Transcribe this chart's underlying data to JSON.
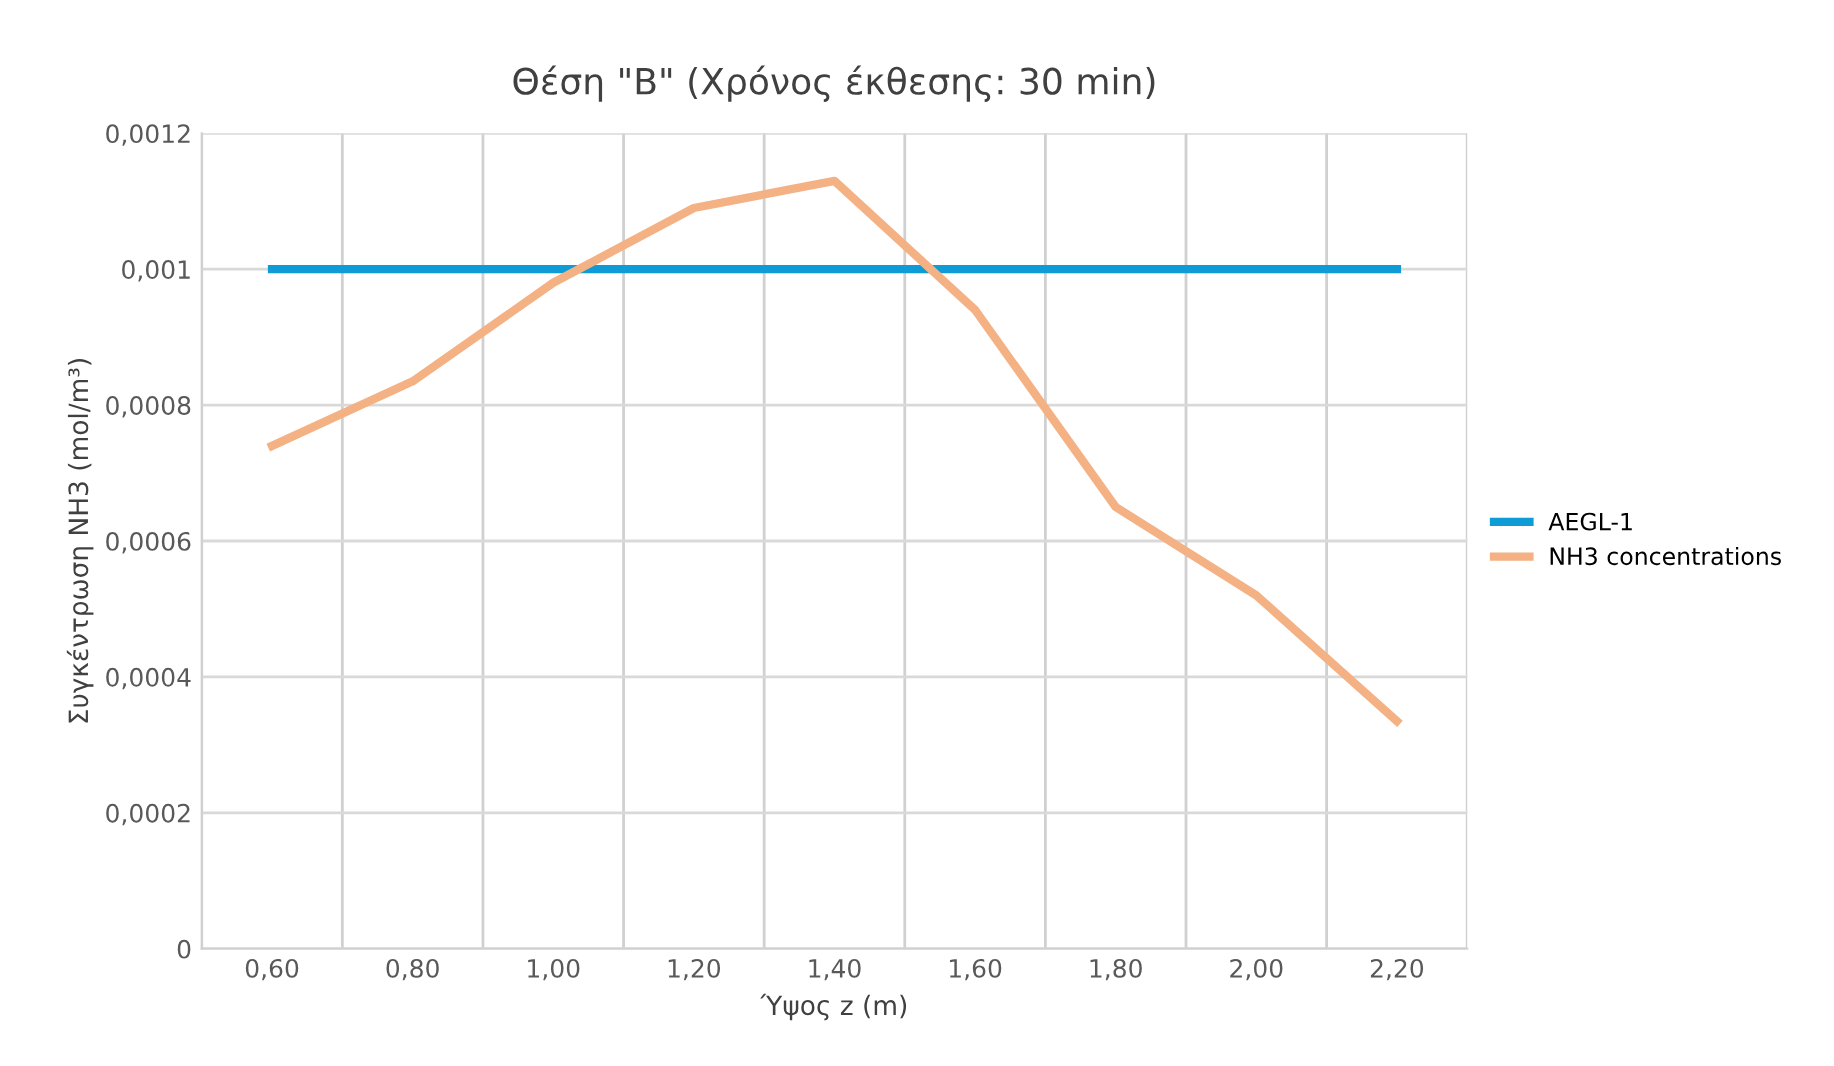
{
  "chart_data": {
    "type": "line",
    "title": "Θέση \"Β\" (Χρόνος έκθεσης: 30 min)",
    "xlabel": "Ύψος z (m)",
    "ylabel": "Συγκέντρωση NH3 (mol/m³)",
    "categories": [
      "0,60",
      "0,80",
      "1,00",
      "1,20",
      "1,40",
      "1,60",
      "1,80",
      "2,00",
      "2,20"
    ],
    "series": [
      {
        "name": "AEGL-1",
        "color": "#0e9bd6",
        "values": [
          0.001,
          0.001,
          0.001,
          0.001,
          0.001,
          0.001,
          0.001,
          0.001,
          0.001
        ]
      },
      {
        "name": "NH3 concentrations",
        "color": "#f4b183",
        "values": [
          0.00074,
          0.000835,
          0.00098,
          0.00109,
          0.00113,
          0.00094,
          0.00065,
          0.00052,
          0.000335
        ]
      }
    ],
    "ylim": [
      0,
      0.0012
    ],
    "yticks": [
      {
        "value": 0,
        "label": "0"
      },
      {
        "value": 0.0002,
        "label": "0,0002"
      },
      {
        "value": 0.0004,
        "label": "0,0004"
      },
      {
        "value": 0.0006,
        "label": "0,0006"
      },
      {
        "value": 0.0008,
        "label": "0,0008"
      },
      {
        "value": 0.001,
        "label": "0,001"
      },
      {
        "value": 0.0012,
        "label": "0,0012"
      }
    ],
    "grid": true,
    "legend": "right",
    "marker": "none",
    "line_style": "solid"
  }
}
